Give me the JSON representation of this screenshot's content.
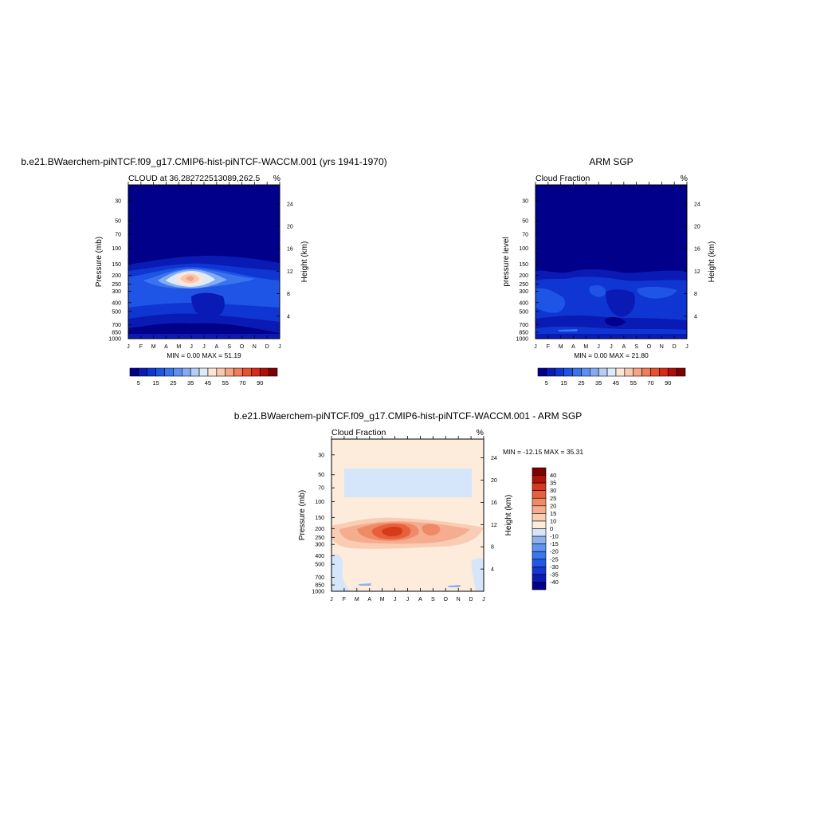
{
  "chart_data": [
    {
      "type": "heatmap",
      "title": "b.e21.BWaerchem-piNTCF.f09_g17.CMIP6-hist-piNTCF-WACCM.001 (yrs 1941-1970)",
      "subtitle": "CLOUD at 36.282722513089,262.5",
      "units": "%",
      "ylabel": "Pressure (mb)",
      "ylabel_right": "Height (km)",
      "x_ticks": [
        "J",
        "F",
        "M",
        "A",
        "M",
        "J",
        "J",
        "A",
        "S",
        "O",
        "N",
        "D",
        "J"
      ],
      "y_ticks": [
        30,
        50,
        70,
        100,
        150,
        200,
        250,
        300,
        400,
        500,
        700,
        850,
        1000
      ],
      "y_right_ticks": [
        24,
        20,
        16,
        12,
        8,
        4
      ],
      "y_scale": "log",
      "ylim": [
        1000,
        20
      ],
      "min_label": "MIN =   0.00 MAX =  51.19",
      "min": 0.0,
      "max": 51.19,
      "colorbar": {
        "orientation": "horizontal",
        "labels": [
          "5",
          "15",
          "25",
          "35",
          "45",
          "55",
          "70",
          "90"
        ],
        "levels": [
          0,
          5,
          10,
          15,
          20,
          25,
          30,
          35,
          40,
          45,
          50,
          55,
          60,
          70,
          80,
          90,
          100
        ]
      },
      "dominant_feature": {
        "peak_value": 51.19,
        "peak_month": "May-Jun",
        "peak_pressure_mb": 225
      }
    },
    {
      "type": "heatmap",
      "title": "ARM SGP",
      "subtitle": "Cloud Fraction",
      "units": "%",
      "ylabel": "pressure level",
      "ylabel_right": "Height (km)",
      "x_ticks": [
        "J",
        "F",
        "M",
        "A",
        "M",
        "J",
        "J",
        "A",
        "S",
        "O",
        "N",
        "D",
        "J"
      ],
      "y_ticks": [
        30,
        50,
        70,
        100,
        150,
        200,
        250,
        300,
        400,
        500,
        700,
        850,
        1000
      ],
      "y_right_ticks": [
        24,
        20,
        16,
        12,
        8,
        4
      ],
      "y_scale": "log",
      "ylim": [
        1000,
        20
      ],
      "min_label": "MIN =   0.00 MAX =  21.80",
      "min": 0.0,
      "max": 21.8,
      "colorbar": {
        "orientation": "horizontal",
        "labels": [
          "5",
          "15",
          "25",
          "35",
          "45",
          "55",
          "70",
          "90"
        ],
        "levels": [
          0,
          5,
          10,
          15,
          20,
          25,
          30,
          35,
          40,
          45,
          50,
          55,
          60,
          70,
          80,
          90,
          100
        ]
      }
    },
    {
      "type": "heatmap",
      "title": "b.e21.BWaerchem-piNTCF.f09_g17.CMIP6-hist-piNTCF-WACCM.001 - ARM SGP",
      "subtitle": "Cloud Fraction",
      "units": "%",
      "ylabel": "Pressure (mb)",
      "ylabel_right": "Height (km)",
      "x_ticks": [
        "J",
        "F",
        "M",
        "A",
        "M",
        "J",
        "J",
        "A",
        "S",
        "O",
        "N",
        "D",
        "J"
      ],
      "y_ticks": [
        30,
        50,
        70,
        100,
        150,
        200,
        250,
        300,
        400,
        500,
        700,
        850,
        1000
      ],
      "y_right_ticks": [
        24,
        20,
        16,
        12,
        8,
        4
      ],
      "y_scale": "log",
      "ylim": [
        1000,
        20
      ],
      "min_label": "MIN = -12.15 MAX =  35.31",
      "min": -12.15,
      "max": 35.31,
      "colorbar": {
        "orientation": "vertical",
        "labels": [
          "40",
          "35",
          "30",
          "25",
          "20",
          "15",
          "10",
          "0",
          "-10",
          "-15",
          "-20",
          "-25",
          "-30",
          "-35",
          "-40"
        ]
      }
    }
  ],
  "colors": {
    "seq": [
      "#00008a",
      "#0a1ab4",
      "#0f36d2",
      "#1f55e6",
      "#3a73ee",
      "#5b8ff0",
      "#85abf2",
      "#b5ccf6",
      "#ddeaf8",
      "#fde6d6",
      "#f9c8b0",
      "#f5a385",
      "#f07c5c",
      "#e9502f",
      "#d82a14",
      "#b10d0a",
      "#800000"
    ],
    "diff": [
      "#00008a",
      "#0a1ab4",
      "#1436d2",
      "#2357e6",
      "#3a76ee",
      "#6293f0",
      "#8fb1f2",
      "#d5e6fa",
      "#fdebdc",
      "#f9cdb4",
      "#f5ad90",
      "#ef8a66",
      "#e85f3c",
      "#d63a1a",
      "#b01408",
      "#800000"
    ]
  }
}
